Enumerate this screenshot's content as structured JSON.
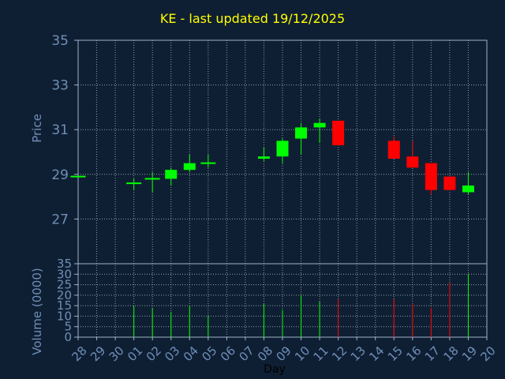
{
  "chart_data": {
    "type": "candlestick",
    "title": "KE - last updated 19/12/2025",
    "price_panel": {
      "ylabel": "Price",
      "ylim": [
        25,
        35
      ],
      "yticks": [
        27,
        29,
        31,
        33,
        35
      ],
      "grid": true
    },
    "volume_panel": {
      "ylabel": "Volume (0000)",
      "ylim": [
        0,
        35
      ],
      "yticks": [
        0,
        5,
        10,
        15,
        20,
        25,
        30,
        35
      ],
      "grid": true
    },
    "xlabel": "Day",
    "categories": [
      "28",
      "29",
      "30",
      "01",
      "02",
      "03",
      "04",
      "05",
      "06",
      "07",
      "08",
      "09",
      "10",
      "11",
      "12",
      "13",
      "14",
      "15",
      "16",
      "17",
      "18",
      "19",
      "20"
    ],
    "candles": [
      {
        "day": "28",
        "open": 28.9,
        "high": 28.9,
        "low": 28.9,
        "close": 28.9,
        "volume": 0
      },
      {
        "day": "01",
        "open": 28.6,
        "high": 28.8,
        "low": 28.3,
        "close": 28.6,
        "volume": 15
      },
      {
        "day": "02",
        "open": 28.8,
        "high": 29.1,
        "low": 28.2,
        "close": 28.8,
        "volume": 14
      },
      {
        "day": "03",
        "open": 28.8,
        "high": 29.3,
        "low": 28.5,
        "close": 29.2,
        "volume": 12
      },
      {
        "day": "04",
        "open": 29.2,
        "high": 29.9,
        "low": 29.1,
        "close": 29.5,
        "volume": 15
      },
      {
        "day": "05",
        "open": 29.5,
        "high": 29.9,
        "low": 29.3,
        "close": 29.5,
        "volume": 10
      },
      {
        "day": "08",
        "open": 29.7,
        "high": 30.2,
        "low": 29.6,
        "close": 29.8,
        "volume": 16
      },
      {
        "day": "09",
        "open": 29.8,
        "high": 30.6,
        "low": 29.5,
        "close": 30.5,
        "volume": 13
      },
      {
        "day": "10",
        "open": 30.6,
        "high": 31.3,
        "low": 29.9,
        "close": 31.1,
        "volume": 20
      },
      {
        "day": "11",
        "open": 31.1,
        "high": 31.5,
        "low": 30.4,
        "close": 31.3,
        "volume": 17
      },
      {
        "day": "12",
        "open": 31.4,
        "high": 31.4,
        "low": 30.3,
        "close": 30.3,
        "volume": 18
      },
      {
        "day": "15",
        "open": 30.5,
        "high": 30.7,
        "low": 29.7,
        "close": 29.7,
        "volume": 18
      },
      {
        "day": "16",
        "open": 29.8,
        "high": 30.5,
        "low": 29.3,
        "close": 29.3,
        "volume": 16
      },
      {
        "day": "17",
        "open": 29.5,
        "high": 29.5,
        "low": 28.1,
        "close": 28.3,
        "volume": 14
      },
      {
        "day": "18",
        "open": 28.9,
        "high": 28.9,
        "low": 28.3,
        "close": 28.3,
        "volume": 26
      },
      {
        "day": "19",
        "open": 28.2,
        "high": 29.1,
        "low": 28.1,
        "close": 28.5,
        "volume": 30
      }
    ],
    "colors": {
      "background": "#0f1f33",
      "up": "#00ff00",
      "down": "#ff0000",
      "axis": "#9fb0c8",
      "grid": "#c8d0dc",
      "label": "#6f8fb8",
      "title": "#ffff00"
    }
  }
}
